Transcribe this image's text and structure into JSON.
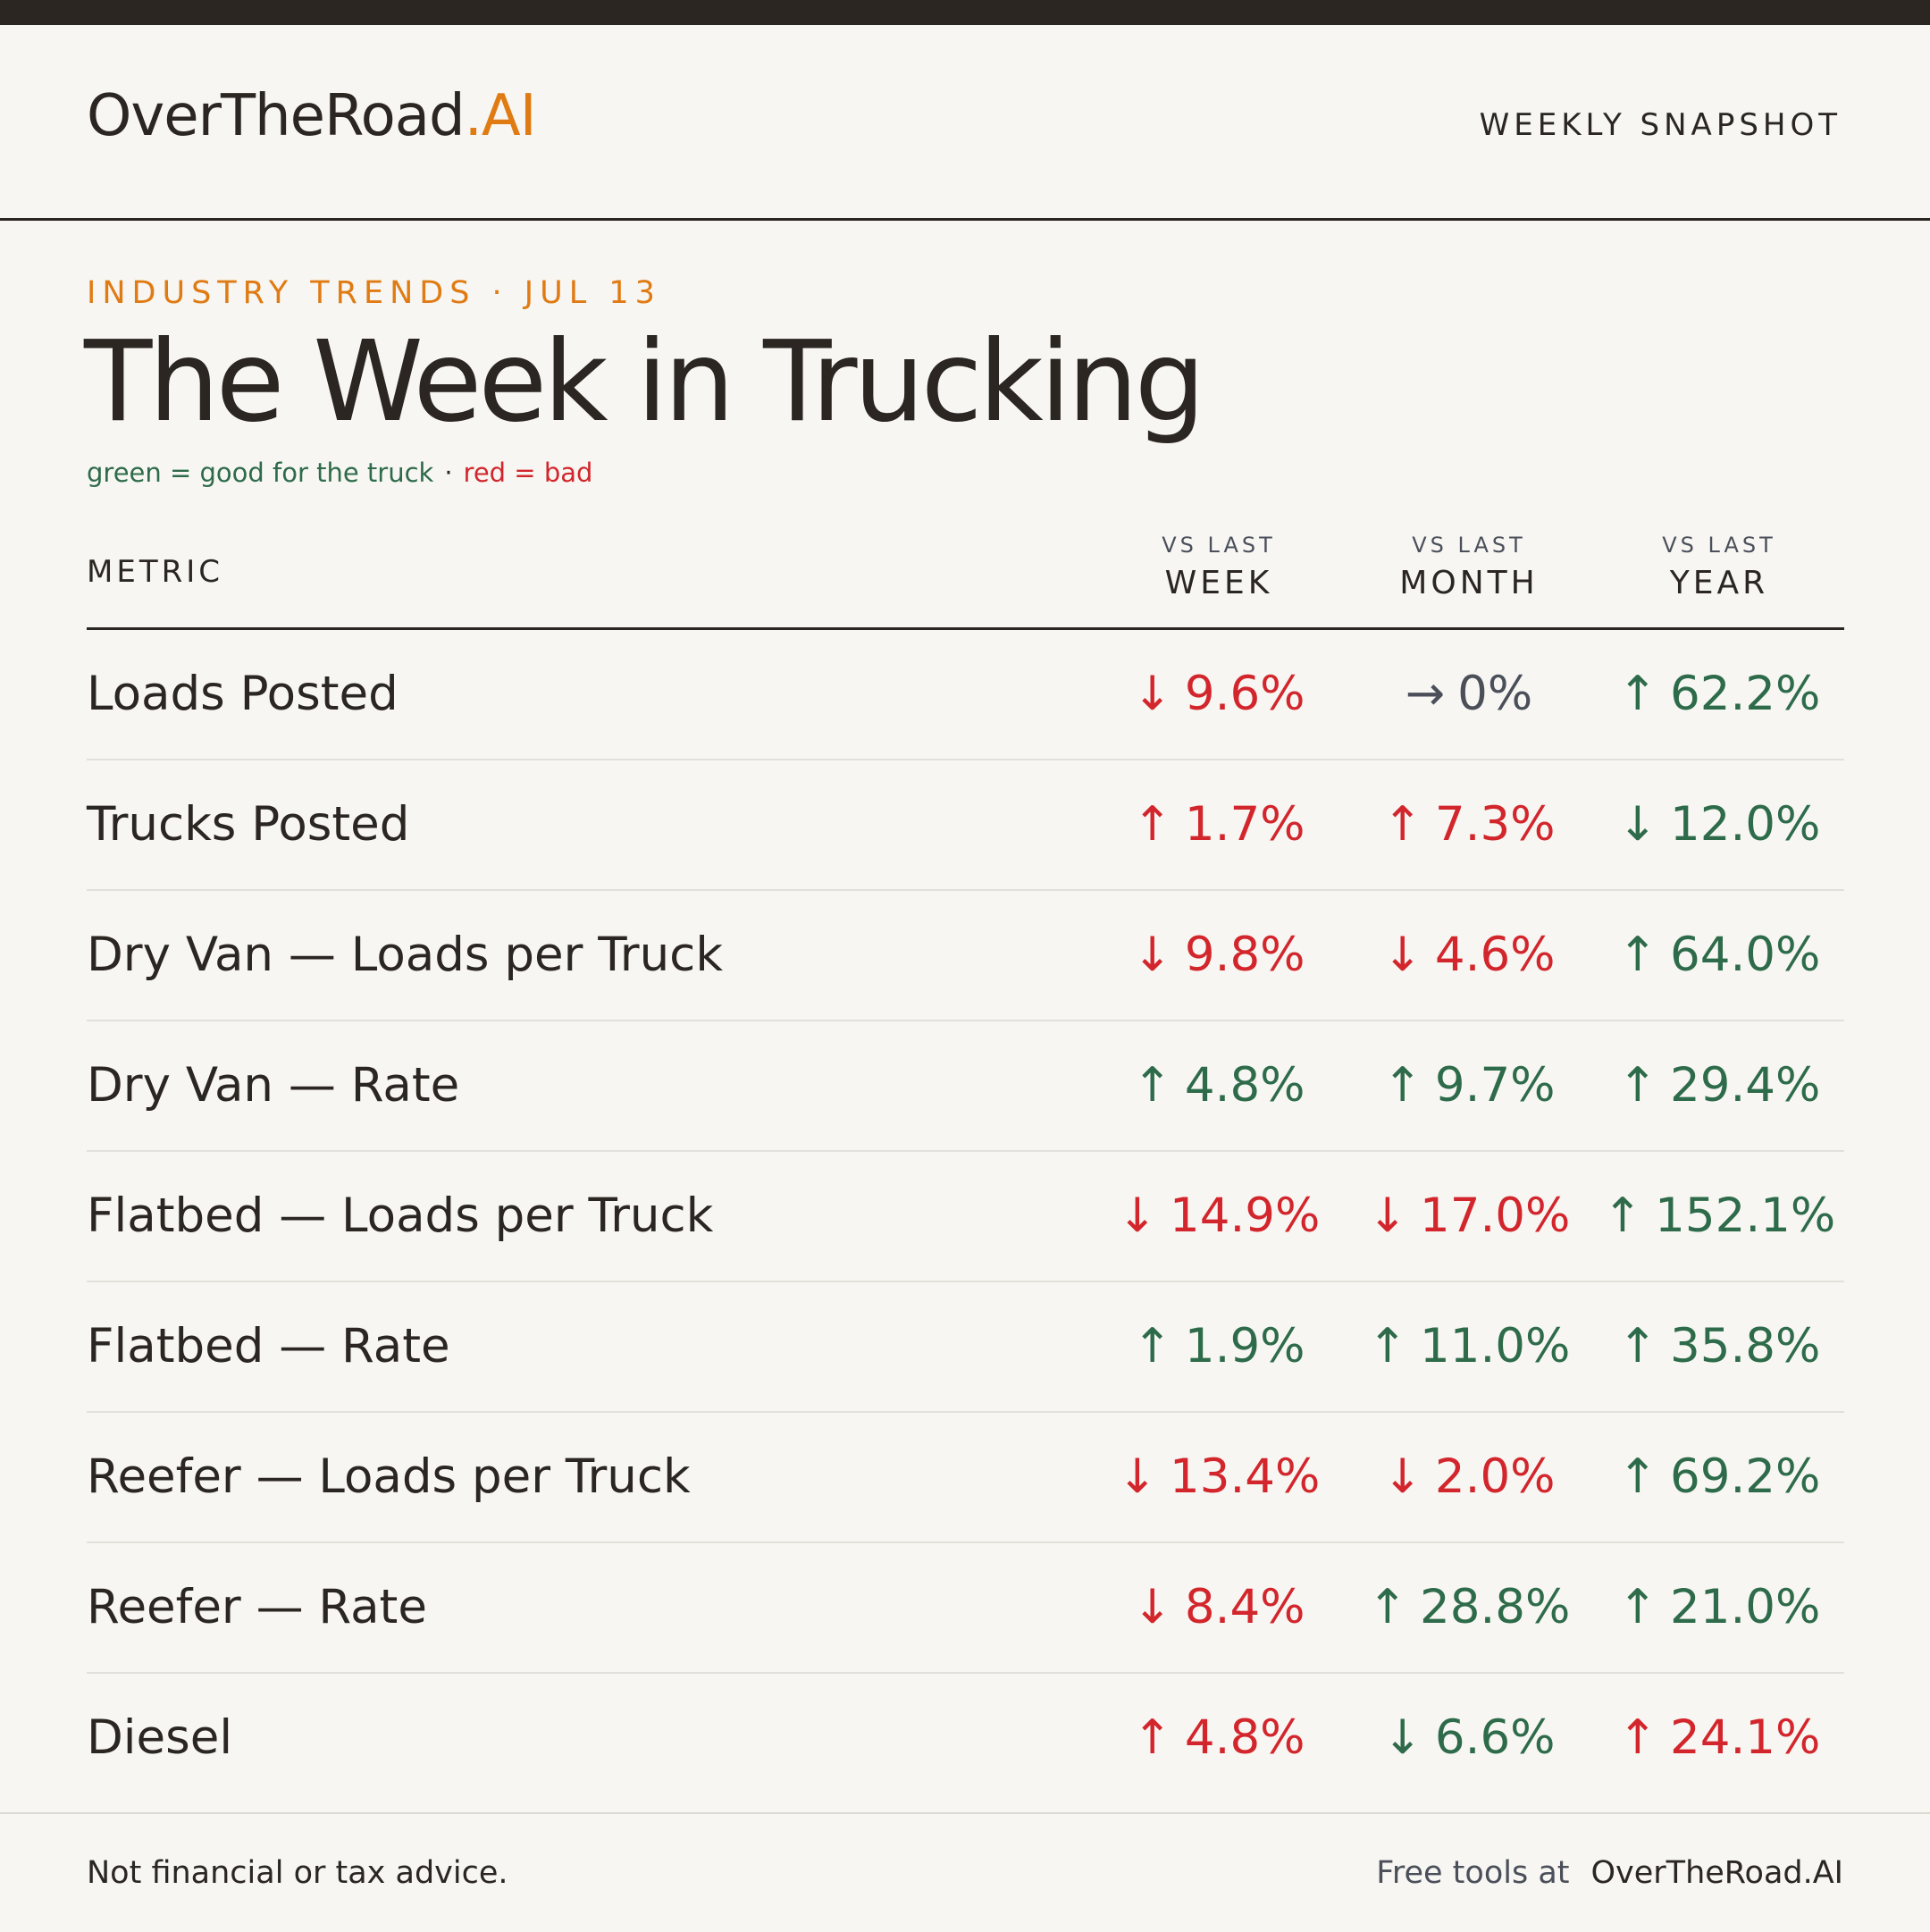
{
  "header": {
    "logo_main": "OverTheRoad",
    "logo_accent": ".AI",
    "snapshot_label": "WEEKLY SNAPSHOT"
  },
  "intro": {
    "kicker": "INDUSTRY TRENDS · JUL 13",
    "title": "The Week in Trucking",
    "legend_good": "green = good for the truck",
    "legend_sep": "·",
    "legend_bad": "red = bad"
  },
  "colors": {
    "good": "#2e6b4a",
    "bad": "#d2262c",
    "neutral": "#4a4f5a",
    "accent": "#e07b14",
    "ink": "#2b2622"
  },
  "table": {
    "metric_header": "METRIC",
    "columns": [
      {
        "small": "VS LAST",
        "big": "WEEK"
      },
      {
        "small": "VS LAST",
        "big": "MONTH"
      },
      {
        "small": "VS LAST",
        "big": "YEAR"
      }
    ],
    "rows": [
      {
        "label": "Loads Posted",
        "values": [
          {
            "arrow": "↓",
            "text": "9.6%",
            "tone": "bad"
          },
          {
            "arrow": "→",
            "text": "0%",
            "tone": "neutral"
          },
          {
            "arrow": "↑",
            "text": "62.2%",
            "tone": "good"
          }
        ]
      },
      {
        "label": "Trucks Posted",
        "values": [
          {
            "arrow": "↑",
            "text": "1.7%",
            "tone": "bad"
          },
          {
            "arrow": "↑",
            "text": "7.3%",
            "tone": "bad"
          },
          {
            "arrow": "↓",
            "text": "12.0%",
            "tone": "good"
          }
        ]
      },
      {
        "label": "Dry Van — Loads per Truck",
        "values": [
          {
            "arrow": "↓",
            "text": "9.8%",
            "tone": "bad"
          },
          {
            "arrow": "↓",
            "text": "4.6%",
            "tone": "bad"
          },
          {
            "arrow": "↑",
            "text": "64.0%",
            "tone": "good"
          }
        ]
      },
      {
        "label": "Dry Van — Rate",
        "values": [
          {
            "arrow": "↑",
            "text": "4.8%",
            "tone": "good"
          },
          {
            "arrow": "↑",
            "text": "9.7%",
            "tone": "good"
          },
          {
            "arrow": "↑",
            "text": "29.4%",
            "tone": "good"
          }
        ]
      },
      {
        "label": "Flatbed — Loads per Truck",
        "values": [
          {
            "arrow": "↓",
            "text": "14.9%",
            "tone": "bad"
          },
          {
            "arrow": "↓",
            "text": "17.0%",
            "tone": "bad"
          },
          {
            "arrow": "↑",
            "text": "152.1%",
            "tone": "good"
          }
        ]
      },
      {
        "label": "Flatbed — Rate",
        "values": [
          {
            "arrow": "↑",
            "text": "1.9%",
            "tone": "good"
          },
          {
            "arrow": "↑",
            "text": "11.0%",
            "tone": "good"
          },
          {
            "arrow": "↑",
            "text": "35.8%",
            "tone": "good"
          }
        ]
      },
      {
        "label": "Reefer — Loads per Truck",
        "values": [
          {
            "arrow": "↓",
            "text": "13.4%",
            "tone": "bad"
          },
          {
            "arrow": "↓",
            "text": "2.0%",
            "tone": "bad"
          },
          {
            "arrow": "↑",
            "text": "69.2%",
            "tone": "good"
          }
        ]
      },
      {
        "label": "Reefer — Rate",
        "values": [
          {
            "arrow": "↓",
            "text": "8.4%",
            "tone": "bad"
          },
          {
            "arrow": "↑",
            "text": "28.8%",
            "tone": "good"
          },
          {
            "arrow": "↑",
            "text": "21.0%",
            "tone": "good"
          }
        ]
      },
      {
        "label": "Diesel",
        "values": [
          {
            "arrow": "↑",
            "text": "4.8%",
            "tone": "bad"
          },
          {
            "arrow": "↓",
            "text": "6.6%",
            "tone": "good"
          },
          {
            "arrow": "↑",
            "text": "24.1%",
            "tone": "bad"
          }
        ]
      }
    ]
  },
  "footer": {
    "disclaimer": "Not financial or tax advice.",
    "free_tools": "Free tools at",
    "site": "OverTheRoad.AI"
  }
}
